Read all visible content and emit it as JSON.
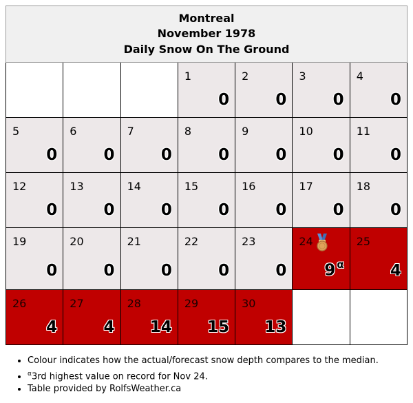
{
  "title": {
    "city": "Montreal",
    "month": "November 1978",
    "subtitle": "Daily Snow On The Ground"
  },
  "weeks": [
    [
      null,
      null,
      null,
      {
        "day": "1",
        "value": "0",
        "level": "median"
      },
      {
        "day": "2",
        "value": "0",
        "level": "median"
      },
      {
        "day": "3",
        "value": "0",
        "level": "median"
      },
      {
        "day": "4",
        "value": "0",
        "level": "median"
      }
    ],
    [
      {
        "day": "5",
        "value": "0",
        "level": "median"
      },
      {
        "day": "6",
        "value": "0",
        "level": "median"
      },
      {
        "day": "7",
        "value": "0",
        "level": "median"
      },
      {
        "day": "8",
        "value": "0",
        "level": "median"
      },
      {
        "day": "9",
        "value": "0",
        "level": "median"
      },
      {
        "day": "10",
        "value": "0",
        "level": "median"
      },
      {
        "day": "11",
        "value": "0",
        "level": "median"
      }
    ],
    [
      {
        "day": "12",
        "value": "0",
        "level": "median"
      },
      {
        "day": "13",
        "value": "0",
        "level": "median"
      },
      {
        "day": "14",
        "value": "0",
        "level": "median"
      },
      {
        "day": "15",
        "value": "0",
        "level": "median"
      },
      {
        "day": "16",
        "value": "0",
        "level": "median"
      },
      {
        "day": "17",
        "value": "0",
        "level": "median"
      },
      {
        "day": "18",
        "value": "0",
        "level": "median"
      }
    ],
    [
      {
        "day": "19",
        "value": "0",
        "level": "median"
      },
      {
        "day": "20",
        "value": "0",
        "level": "median"
      },
      {
        "day": "21",
        "value": "0",
        "level": "median"
      },
      {
        "day": "22",
        "value": "0",
        "level": "median"
      },
      {
        "day": "23",
        "value": "0",
        "level": "median"
      },
      {
        "day": "24",
        "value": "9",
        "sup": "α",
        "level": "above",
        "medal": "bronze-medal-icon"
      },
      {
        "day": "25",
        "value": "4",
        "level": "above"
      }
    ],
    [
      {
        "day": "26",
        "value": "4",
        "level": "above"
      },
      {
        "day": "27",
        "value": "4",
        "level": "above"
      },
      {
        "day": "28",
        "value": "14",
        "level": "above"
      },
      {
        "day": "29",
        "value": "15",
        "level": "above"
      },
      {
        "day": "30",
        "value": "13",
        "level": "above"
      },
      null,
      null
    ]
  ],
  "colors": {
    "median": "#ede8e9",
    "above": "#c00000",
    "empty": "#ffffff",
    "header": "#f0f0f0"
  },
  "notes": {
    "colour": "Colour indicates how the actual/forecast snow depth compares to the median.",
    "record_marker": "α",
    "record": "3rd highest value on record for Nov 24.",
    "credit": "Table provided by RolfsWeather.ca"
  }
}
